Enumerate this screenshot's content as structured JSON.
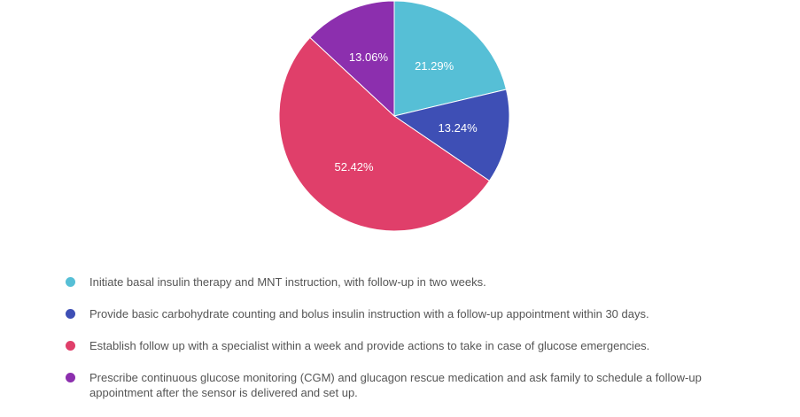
{
  "chart_data": {
    "type": "pie",
    "start_angle": "12 o'clock, clockwise",
    "slices": [
      {
        "label": "Initiate basal insulin therapy and MNT instruction, with follow-up in two weeks.",
        "value": 21.29,
        "display": "21.29%",
        "color": "#56bfd6"
      },
      {
        "label": "Provide basic carbohydrate counting and bolus insulin instruction with a follow-up appointment within 30 days.",
        "value": 13.24,
        "display": "13.24%",
        "color": "#3e4fb5"
      },
      {
        "label": "Establish follow up with a specialist within a week and provide actions to take in case of glucose emergencies.",
        "value": 52.42,
        "display": "52.42%",
        "color": "#e03f6a"
      },
      {
        "label": "Prescribe continuous glucose monitoring (CGM) and glucagon rescue medication and ask family to schedule a follow-up appointment after the sensor is delivered and set up.",
        "value": 13.06,
        "display": "13.06%",
        "color": "#8c2fae"
      }
    ],
    "legend_position": "bottom"
  }
}
